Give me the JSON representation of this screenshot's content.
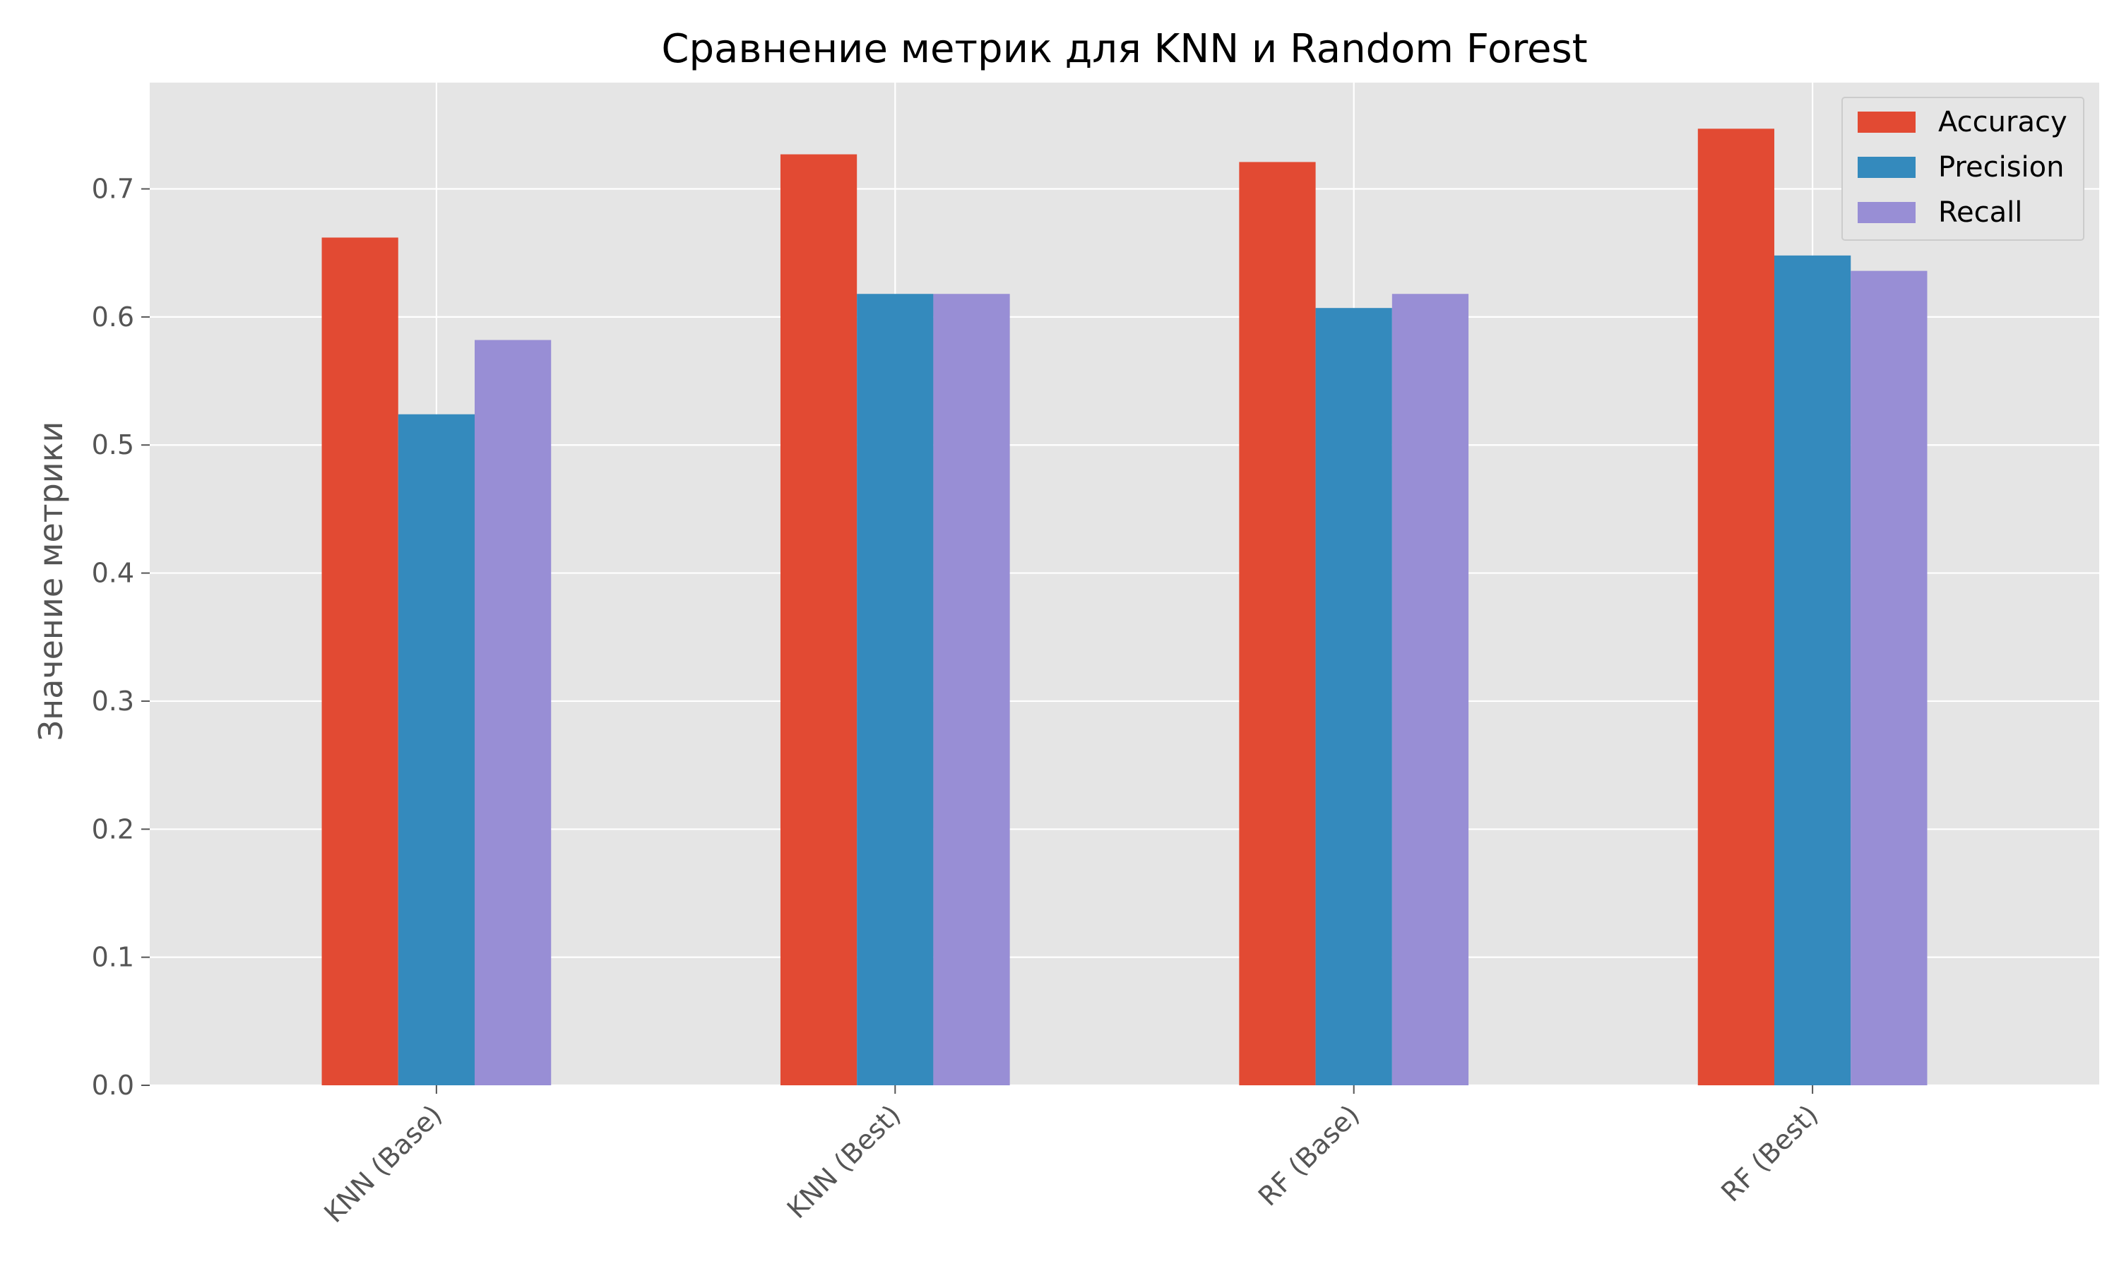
{
  "chart_data": {
    "type": "bar",
    "title": "Сравнение метрик для KNN и Random Forest",
    "xlabel": "",
    "ylabel": "Значение метрики",
    "categories": [
      "KNN (Base)",
      "KNN (Best)",
      "RF (Base)",
      "RF (Best)"
    ],
    "series": [
      {
        "name": "Accuracy",
        "color": "#E24A33",
        "values": [
          0.662,
          0.727,
          0.721,
          0.747
        ]
      },
      {
        "name": "Precision",
        "color": "#348ABD",
        "values": [
          0.524,
          0.618,
          0.607,
          0.648
        ]
      },
      {
        "name": "Recall",
        "color": "#988ED5",
        "values": [
          0.582,
          0.618,
          0.618,
          0.636
        ]
      }
    ],
    "ylim": [
      0,
      0.783
    ],
    "yticks": [
      "0.0",
      "0.1",
      "0.2",
      "0.3",
      "0.4",
      "0.5",
      "0.6",
      "0.7"
    ],
    "grid": true,
    "legend_position": "top-right",
    "style": {
      "plot_background": "#E5E5E5",
      "grid_color": "#FFFFFF"
    }
  }
}
